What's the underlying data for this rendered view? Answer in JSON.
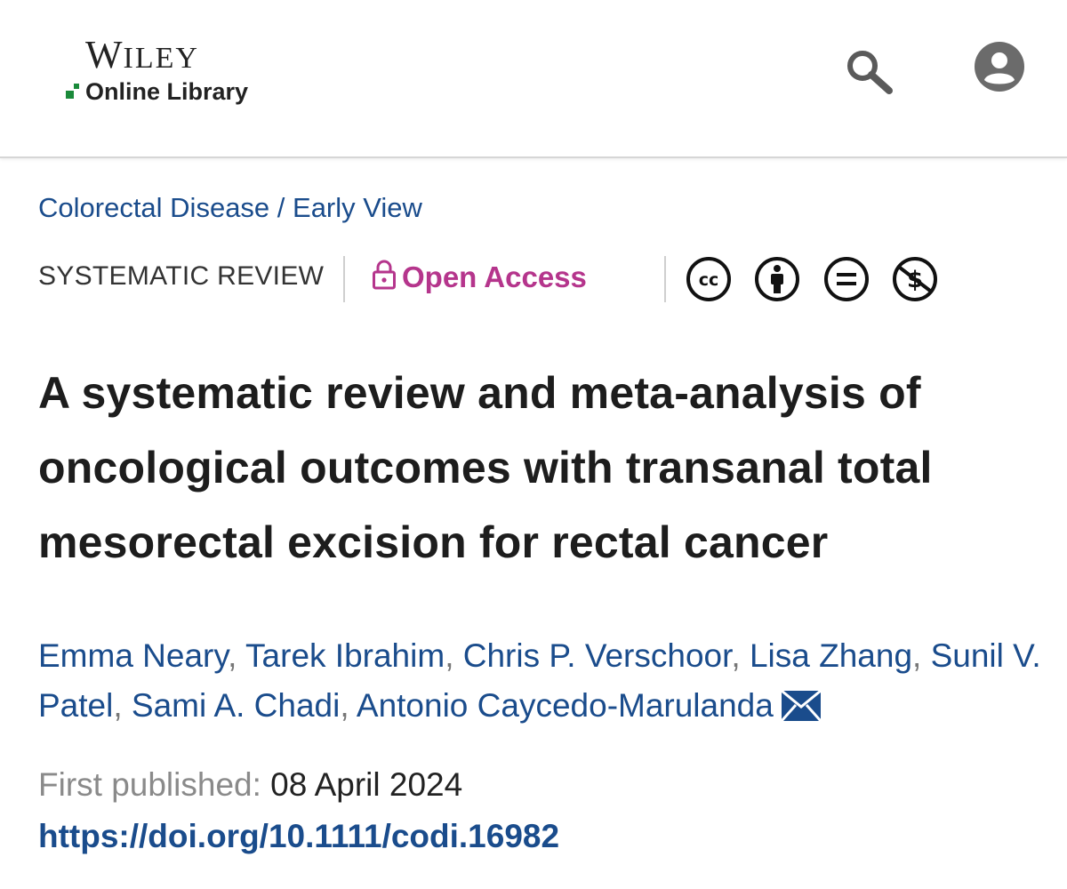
{
  "header": {
    "brand_word": "Wiley",
    "brand_sub": "Online Library"
  },
  "breadcrumb": {
    "journal": "Colorectal Disease",
    "separator": " / ",
    "issue": "Early View"
  },
  "article": {
    "type": "SYSTEMATIC REVIEW",
    "access_label": "Open Access",
    "license_icons": [
      "cc-icon",
      "by-attribution-icon",
      "nd-no-derivatives-icon",
      "nc-noncommercial-icon"
    ],
    "title": "A systematic review and meta-analysis of oncological outcomes with transanal total mesorectal excision for rectal cancer",
    "authors": [
      "Emma Neary",
      "Tarek Ibrahim",
      "Chris P. Verschoor",
      "Lisa Zhang",
      "Sunil V. Patel",
      "Sami A. Chadi",
      "Antonio Caycedo-Marulanda"
    ],
    "published_label": "First published:",
    "published_date": "08 April 2024",
    "doi": "https://doi.org/10.1111/codi.16982"
  },
  "colors": {
    "link": "#1a4c8c",
    "open_access": "#b5358c",
    "logo_green": "#1a8a3a"
  }
}
